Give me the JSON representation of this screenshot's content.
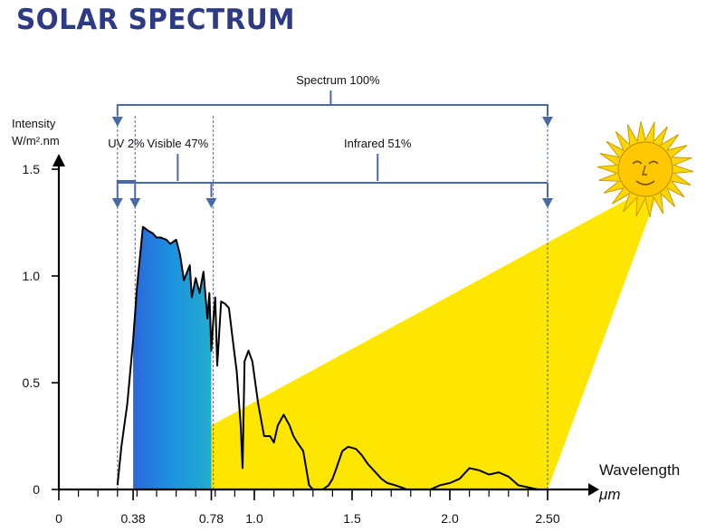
{
  "title": "SOLAR SPECTRUM",
  "chart_data": {
    "type": "line",
    "ylabel_line1": "Intensity",
    "ylabel_line2": "W/m².nm",
    "xlabel": "Wavelength",
    "xunit": "μm",
    "xlim": [
      0,
      2.65
    ],
    "ylim": [
      0,
      1.5
    ],
    "x_ticks": [
      {
        "value": 0,
        "label": "0"
      },
      {
        "value": 0.38,
        "label": "0.38"
      },
      {
        "value": 0.78,
        "label": "0.78"
      },
      {
        "value": 1.0,
        "label": "1.0"
      },
      {
        "value": 1.5,
        "label": "1.5"
      },
      {
        "value": 2.0,
        "label": "2.0"
      },
      {
        "value": 2.5,
        "label": "2.50"
      }
    ],
    "y_ticks": [
      {
        "value": 0,
        "label": "0"
      },
      {
        "value": 0.5,
        "label": "0.5"
      },
      {
        "value": 1.0,
        "label": "1.0"
      },
      {
        "value": 1.5,
        "label": "1.5"
      }
    ],
    "bands": [
      {
        "label": "Spectrum 100%",
        "from": 0.3,
        "to": 2.5
      },
      {
        "label": "UV 2%",
        "from": 0.3,
        "to": 0.39
      },
      {
        "label": "Visible 47%",
        "from": 0.39,
        "to": 0.78
      },
      {
        "label": "Infrared 51%",
        "from": 0.78,
        "to": 2.5
      }
    ],
    "series": [
      {
        "x": [
          0.3,
          0.32,
          0.35,
          0.38,
          0.4,
          0.43,
          0.46,
          0.48,
          0.5,
          0.52,
          0.55,
          0.57,
          0.6,
          0.62,
          0.64,
          0.67,
          0.68,
          0.7,
          0.72,
          0.74,
          0.76,
          0.77,
          0.78,
          0.79,
          0.8,
          0.81,
          0.83,
          0.85,
          0.87,
          0.89,
          0.91,
          0.93,
          0.94,
          0.95,
          0.97,
          0.99,
          1.02,
          1.05,
          1.08,
          1.1,
          1.12,
          1.15,
          1.18,
          1.2,
          1.22,
          1.25,
          1.28,
          1.3,
          1.32,
          1.35,
          1.38,
          1.4,
          1.42,
          1.45,
          1.48,
          1.52,
          1.55,
          1.58,
          1.62,
          1.65,
          1.68,
          1.72,
          1.75,
          1.78,
          1.8,
          1.85,
          1.9,
          1.95,
          2.0,
          2.05,
          2.1,
          2.15,
          2.2,
          2.25,
          2.3,
          2.35,
          2.4,
          2.45,
          2.5
        ],
        "y": [
          0.02,
          0.2,
          0.4,
          0.7,
          0.95,
          1.23,
          1.21,
          1.2,
          1.18,
          1.18,
          1.17,
          1.15,
          1.17,
          1.1,
          0.98,
          1.05,
          0.9,
          0.99,
          0.92,
          1.02,
          0.8,
          0.92,
          0.65,
          0.79,
          0.9,
          0.58,
          0.88,
          0.87,
          0.85,
          0.7,
          0.55,
          0.3,
          0.1,
          0.6,
          0.65,
          0.6,
          0.4,
          0.25,
          0.25,
          0.22,
          0.3,
          0.35,
          0.3,
          0.25,
          0.22,
          0.18,
          0.02,
          0.0,
          0.0,
          0.0,
          0.02,
          0.05,
          0.1,
          0.18,
          0.2,
          0.19,
          0.16,
          0.12,
          0.08,
          0.05,
          0.03,
          0.02,
          0.01,
          0.0,
          0.0,
          0.0,
          0.0,
          0.02,
          0.03,
          0.05,
          0.1,
          0.09,
          0.07,
          0.08,
          0.06,
          0.02,
          0.01,
          0.0,
          0.0
        ]
      }
    ],
    "colors": {
      "line": "#000000",
      "bracket": "#4a6aa5",
      "sunbeam": "#ffe600",
      "sun": "#ffd700",
      "axis": "#000000"
    }
  }
}
